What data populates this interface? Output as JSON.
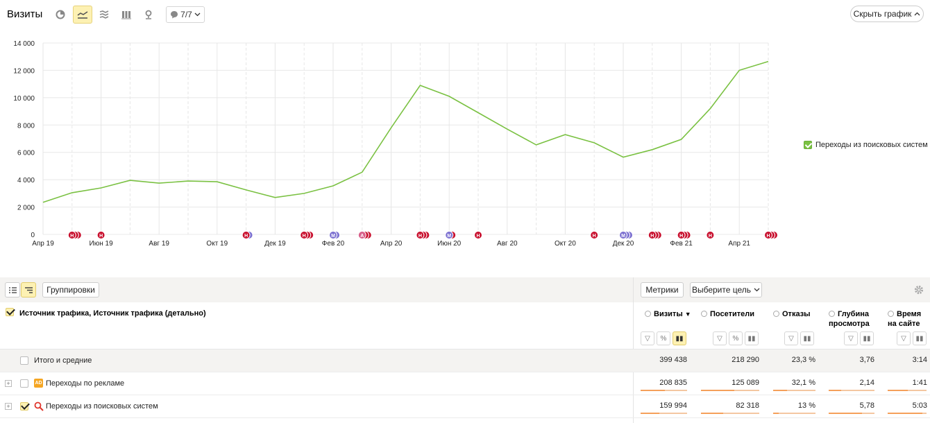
{
  "header": {
    "title": "Визиты",
    "notes_label": "7/7",
    "hide_chart_label": "Скрыть график"
  },
  "chart_data": {
    "type": "line",
    "y_ticks": [
      "14 000",
      "12 000",
      "10 000",
      "8 000",
      "6 000",
      "4 000",
      "2 000",
      "0"
    ],
    "ylim": [
      0,
      14000
    ],
    "x_labels": [
      "Апр 19",
      "Июн 19",
      "Авг 19",
      "Окт 19",
      "Дек 19",
      "Фев 20",
      "Апр 20",
      "Июн 20",
      "Авг 20",
      "Окт 20",
      "Дек 20",
      "Фев 21",
      "Апр 21"
    ],
    "months": [
      "2019-04",
      "2019-05",
      "2019-06",
      "2019-07",
      "2019-08",
      "2019-09",
      "2019-10",
      "2019-11",
      "2019-12",
      "2020-01",
      "2020-02",
      "2020-03",
      "2020-04",
      "2020-05",
      "2020-06",
      "2020-07",
      "2020-08",
      "2020-09",
      "2020-10",
      "2020-11",
      "2020-12",
      "2021-01",
      "2021-02",
      "2021-03",
      "2021-04",
      "2021-05"
    ],
    "series": [
      {
        "name": "Переходы из поисковых систем",
        "color": "#7ac142",
        "values": [
          2350,
          3050,
          3400,
          3950,
          3750,
          3900,
          3850,
          3250,
          2700,
          3000,
          3550,
          4550,
          7800,
          10900,
          10100,
          8900,
          7700,
          6550,
          7300,
          6700,
          5650,
          6200,
          6950,
          9200,
          12000,
          12650
        ]
      }
    ],
    "annotations": [
      {
        "month": "2019-05",
        "letters": [
          "Н",
          "",
          ""
        ],
        "colors": [
          "#c8102e",
          "#c8102e",
          "#c8102e"
        ]
      },
      {
        "month": "2019-06",
        "letters": [
          "Н"
        ],
        "colors": [
          "#c8102e"
        ]
      },
      {
        "month": "2019-11",
        "letters": [
          "Н",
          ""
        ],
        "colors": [
          "#c8102e",
          "#7b6fd0"
        ]
      },
      {
        "month": "2020-01",
        "letters": [
          "Н",
          "",
          ""
        ],
        "colors": [
          "#c8102e",
          "#c8102e",
          "#c8102e"
        ]
      },
      {
        "month": "2020-02",
        "letters": [
          "М",
          ""
        ],
        "colors": [
          "#7b6fd0",
          "#7b6fd0"
        ]
      },
      {
        "month": "2020-03",
        "letters": [
          "А",
          "",
          ""
        ],
        "colors": [
          "#d8608a",
          "#c8102e",
          "#c8102e"
        ]
      },
      {
        "month": "2020-05",
        "letters": [
          "Н",
          "",
          ""
        ],
        "colors": [
          "#c8102e",
          "#c8102e",
          "#c8102e"
        ]
      },
      {
        "month": "2020-06",
        "letters": [
          "М",
          ""
        ],
        "colors": [
          "#7b6fd0",
          "#c8102e"
        ]
      },
      {
        "month": "2020-07",
        "letters": [
          "Н"
        ],
        "colors": [
          "#c8102e"
        ]
      },
      {
        "month": "2020-11",
        "letters": [
          "Н"
        ],
        "colors": [
          "#c8102e"
        ]
      },
      {
        "month": "2020-12",
        "letters": [
          "М",
          "",
          ""
        ],
        "colors": [
          "#7b6fd0",
          "#7b6fd0",
          "#7b6fd0"
        ]
      },
      {
        "month": "2021-01",
        "letters": [
          "Н",
          "",
          ""
        ],
        "colors": [
          "#c8102e",
          "#c8102e",
          "#c8102e"
        ]
      },
      {
        "month": "2021-02",
        "letters": [
          "Н",
          "",
          ""
        ],
        "colors": [
          "#c8102e",
          "#c8102e",
          "#c8102e"
        ]
      },
      {
        "month": "2021-03",
        "letters": [
          "Н"
        ],
        "colors": [
          "#c8102e"
        ]
      },
      {
        "month": "2021-05",
        "letters": [
          "Н",
          "",
          ""
        ],
        "colors": [
          "#c8102e",
          "#c8102e",
          "#c8102e"
        ]
      }
    ],
    "legend": "right"
  },
  "table": {
    "groupings_label": "Группировки",
    "metrics_label": "Метрики",
    "goal_label": "Выберите цель",
    "dimension_title": "Источник трафика, Источник трафика (детально)",
    "columns": [
      {
        "name": "Визиты",
        "sort": "▼"
      },
      {
        "name": "Посетители"
      },
      {
        "name": "Отказы"
      },
      {
        "name": "Глубина просмотра"
      },
      {
        "name": "Время на сайте"
      }
    ],
    "total_row": {
      "label": "Итого и средние",
      "values": [
        "399 438",
        "218 290",
        "23,3 %",
        "3,76",
        "3:14"
      ]
    },
    "rows": [
      {
        "label": "Переходы по рекламе",
        "icon": "ad-icon",
        "icon_text": "AD",
        "values": [
          "208 835",
          "125 089",
          "32,1 %",
          "2,14",
          "1:41"
        ],
        "fill": [
          0.52,
          0.57,
          0.32,
          0.28,
          0.52
        ]
      },
      {
        "label": "Переходы из поисковых систем",
        "icon": "search-icon",
        "values": [
          "159 994",
          "82 318",
          "13 %",
          "5,78",
          "5:03"
        ],
        "fill": [
          0.4,
          0.38,
          0.13,
          0.72,
          0.9
        ]
      }
    ]
  }
}
